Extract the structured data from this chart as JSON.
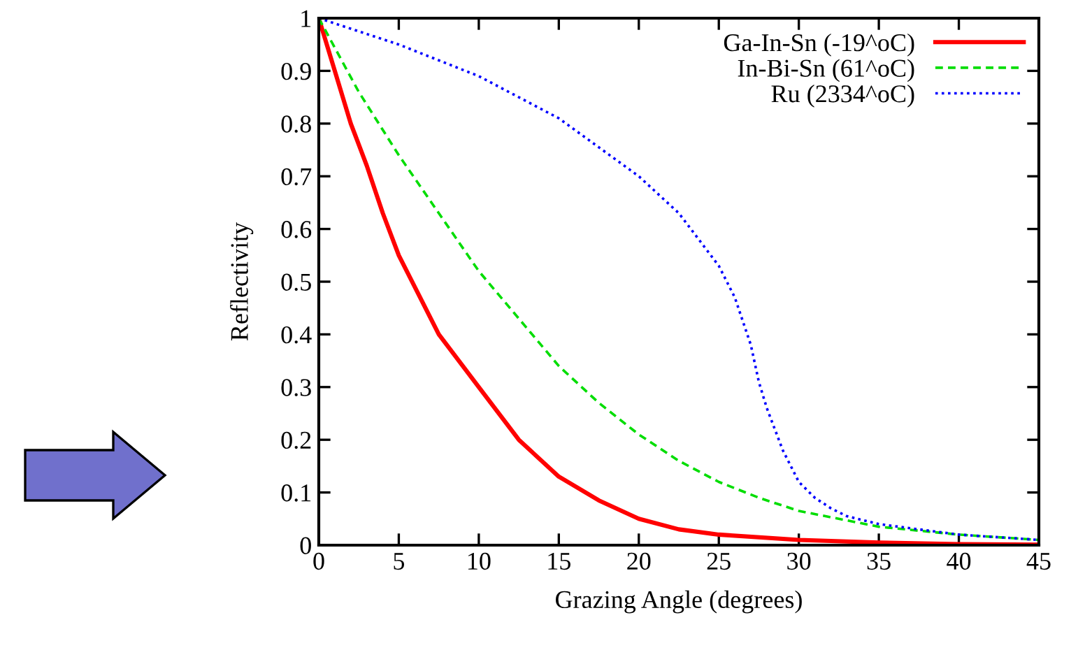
{
  "chart_data": {
    "type": "line",
    "xlabel": "Grazing Angle (degrees)",
    "ylabel": "Reflectivity",
    "xlim": [
      0,
      45
    ],
    "xticks": [
      0,
      5,
      10,
      15,
      20,
      25,
      30,
      35,
      40,
      45
    ],
    "ylim": [
      0,
      1
    ],
    "yticks": [
      0,
      0.1,
      0.2,
      0.3,
      0.4,
      0.5,
      0.6,
      0.7,
      0.8,
      0.9,
      1
    ],
    "grid": false,
    "legend": "top right",
    "series": [
      {
        "name": "Ga-In-Sn (-19^oC)",
        "color": "#ff0000",
        "line_style": "solid",
        "x": [
          0,
          1,
          2,
          3,
          4,
          5,
          7.5,
          10,
          12.5,
          15,
          17.5,
          20,
          22.5,
          25,
          30,
          35,
          40,
          45
        ],
        "values": [
          1,
          0.9,
          0.8,
          0.72,
          0.63,
          0.55,
          0.4,
          0.3,
          0.2,
          0.13,
          0.085,
          0.05,
          0.03,
          0.02,
          0.01,
          0.005,
          0.002,
          0.001
        ]
      },
      {
        "name": "In-Bi-Sn (61^oC)",
        "color": "#00dd00",
        "line_style": "dashed",
        "x": [
          0,
          2.5,
          5,
          7.5,
          10,
          12.5,
          15,
          17.5,
          20,
          22.5,
          25,
          27.5,
          30,
          35,
          40,
          45
        ],
        "values": [
          1,
          0.86,
          0.74,
          0.63,
          0.52,
          0.43,
          0.34,
          0.27,
          0.21,
          0.16,
          0.12,
          0.09,
          0.065,
          0.035,
          0.02,
          0.01
        ]
      },
      {
        "name": "Ru (2334^oC)",
        "color": "#0000ff",
        "line_style": "dotted",
        "x": [
          0,
          5,
          10,
          15,
          20,
          22.5,
          25,
          26,
          27,
          27.5,
          28,
          29,
          30,
          31,
          32,
          33,
          35,
          40,
          45
        ],
        "values": [
          1,
          0.95,
          0.89,
          0.81,
          0.7,
          0.63,
          0.53,
          0.47,
          0.38,
          0.31,
          0.26,
          0.18,
          0.12,
          0.09,
          0.07,
          0.055,
          0.04,
          0.02,
          0.01
        ]
      }
    ]
  }
}
